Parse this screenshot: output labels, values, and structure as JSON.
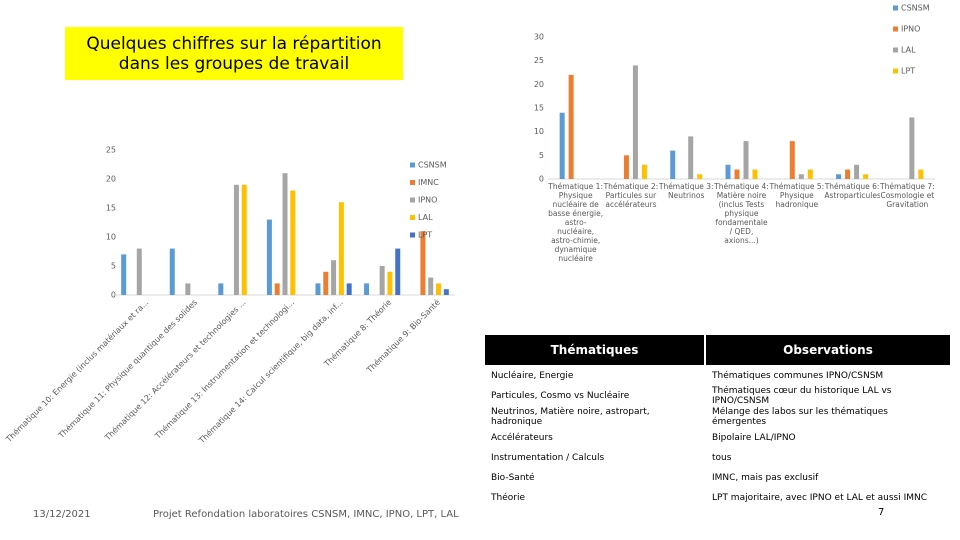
{
  "title": "Quelques chiffres sur la répartition dans les groupes de travail",
  "chart_data": [
    {
      "type": "bar",
      "categories": [
        "Thématique 1: Physique nucléaire de basse énergie, astro-nucléaire, astro-chimie, dynamique nucléaire",
        "Thématique 2: Particules sur accélérateurs",
        "Thématique 3: Neutrinos",
        "Thématique 4: Matière noire (inclus Tests physique fondamentale / QED, axions...)",
        "Thématique 5: Physique hadronique",
        "Thématique 6: Astroparticules",
        "Thématique 7: Cosmologie et Gravitation"
      ],
      "series": [
        {
          "name": "CSNSM",
          "color": "#5b9bd5",
          "values": [
            14,
            0,
            6,
            3,
            0,
            1,
            0
          ]
        },
        {
          "name": "IPNO",
          "color": "#ed7d31",
          "values": [
            22,
            5,
            0,
            2,
            8,
            2,
            0
          ]
        },
        {
          "name": "LAL",
          "color": "#a5a5a5",
          "values": [
            0,
            24,
            9,
            8,
            1,
            3,
            13
          ]
        },
        {
          "name": "LPT",
          "color": "#ffc000",
          "values": [
            0,
            3,
            1,
            2,
            2,
            1,
            2
          ]
        }
      ],
      "ylim": [
        0,
        30
      ],
      "yticks": [
        0,
        5,
        10,
        15,
        20,
        25,
        30
      ],
      "legend": "right"
    },
    {
      "type": "bar",
      "categories": [
        "Thématique 10: Energie (inclus matériaux et ra...",
        "Thématique 11: Physique quantique des solides",
        "Thématique 12: Accélérateurs et technologies ...",
        "Thématique 13: Instrumentation et technologi...",
        "Thématique 14: Calcul scientifique, big data, inf...",
        "Thématique 8: Théorie",
        "Thématique 9: Bio-Santé"
      ],
      "series": [
        {
          "name": "CSNSM",
          "color": "#5b9bd5",
          "values": [
            7,
            8,
            2,
            13,
            2,
            2,
            0
          ]
        },
        {
          "name": "IMNC",
          "color": "#ed7d31",
          "values": [
            0,
            0,
            0,
            2,
            4,
            0,
            11
          ]
        },
        {
          "name": "IPNO",
          "color": "#a5a5a5",
          "values": [
            8,
            2,
            19,
            21,
            6,
            5,
            3
          ]
        },
        {
          "name": "LAL",
          "color": "#ffc000",
          "values": [
            0,
            0,
            19,
            18,
            16,
            4,
            2
          ]
        },
        {
          "name": "LPT",
          "color": "#4472c4",
          "values": [
            0,
            0,
            0,
            0,
            2,
            8,
            1
          ]
        }
      ],
      "ylim": [
        0,
        25
      ],
      "yticks": [
        0,
        5,
        10,
        15,
        20,
        25
      ],
      "legend": "right"
    }
  ],
  "table": {
    "header": [
      "Thématiques",
      "Observations"
    ],
    "rows": [
      [
        "Nucléaire, Energie",
        "Thématiques communes IPNO/CSNSM"
      ],
      [
        "Particules, Cosmo vs Nucléaire",
        "Thématiques cœur du historique LAL vs IPNO/CSNSM"
      ],
      [
        "Neutrinos, Matière noire, astropart, hadronique",
        "Mélange des labos sur les thématiques émergentes"
      ],
      [
        "Accélérateurs",
        "Bipolaire LAL/IPNO"
      ],
      [
        "Instrumentation / Calculs",
        "tous"
      ],
      [
        "Bio-Santé",
        "IMNC, mais pas exclusif"
      ],
      [
        "Théorie",
        "LPT majoritaire, avec IPNO et LAL et aussi IMNC"
      ]
    ]
  },
  "footer": {
    "date": "13/12/2021",
    "text": "Projet Refondation laboratoires CSNSM, IMNC, IPNO, LPT, LAL",
    "page": "7"
  }
}
